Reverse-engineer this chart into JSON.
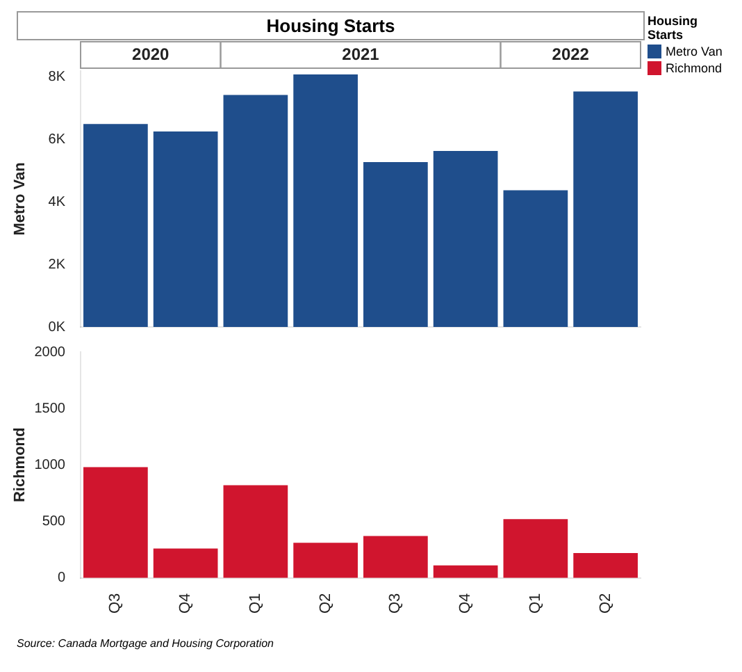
{
  "chart_data": [
    {
      "type": "bar",
      "title": "Housing Starts",
      "ylabel": "Metro Van",
      "legend_title": "Housing Starts",
      "legend": "top right",
      "categories": [
        null,
        null,
        null,
        null,
        null,
        null,
        null,
        null
      ],
      "series": [
        {
          "name": "Metro Van",
          "color": "#1f4e8c",
          "values": [
            6500,
            6260,
            7430,
            8090,
            5280,
            5640,
            4380,
            7540
          ]
        }
      ],
      "ylim": [
        0,
        8200
      ],
      "yticks": [
        {
          "value": 0,
          "label": "0K"
        },
        {
          "value": 2000,
          "label": "2K"
        },
        {
          "value": 4000,
          "label": "4K"
        },
        {
          "value": 6000,
          "label": "6K"
        },
        {
          "value": 8000,
          "label": "8K"
        }
      ],
      "tick_labels": "y",
      "annotations": [
        "2020",
        "2021",
        "2022",
        "Source: Canada Mortgage and Housing Corporation"
      ]
    },
    {
      "type": "bar",
      "ylabel": "Richmond",
      "legend": "top right",
      "categories": [
        "Q3",
        "Q4",
        "Q1",
        "Q2",
        "Q3",
        "Q4",
        "Q1",
        "Q2"
      ],
      "series": [
        {
          "name": "Richmond",
          "color": "#d0152e",
          "values": [
            980,
            260,
            820,
            310,
            370,
            110,
            520,
            220
          ]
        }
      ],
      "ylim": [
        0,
        2000
      ],
      "yticks": [
        0,
        500,
        1000,
        1500,
        2000
      ]
    }
  ]
}
